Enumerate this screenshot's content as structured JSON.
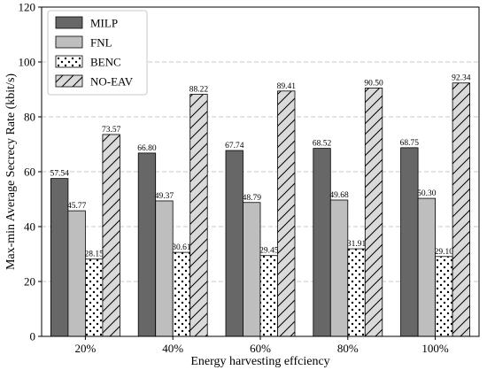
{
  "chart_data": {
    "type": "bar",
    "xlabel": "Energy harvesting effciency",
    "ylabel": "Max-min Average Secrecy Rate (kbit/s)",
    "categories": [
      "20%",
      "40%",
      "60%",
      "80%",
      "100%"
    ],
    "ylim": [
      0,
      120
    ],
    "yticks": [
      0,
      20,
      40,
      60,
      80,
      100,
      120
    ],
    "grid": "horizontal dashed",
    "legend_position": "top-left",
    "series": [
      {
        "name": "MILP",
        "values": [
          57.54,
          66.8,
          67.74,
          68.52,
          68.75
        ],
        "labels": [
          "57.54",
          "66.80",
          "67.74",
          "68.52",
          "68.75"
        ],
        "fill": "#676767",
        "pattern": "solid"
      },
      {
        "name": "FNL",
        "values": [
          45.77,
          49.37,
          48.79,
          49.68,
          50.3
        ],
        "labels": [
          "45.77",
          "49.37",
          "48.79",
          "49.68",
          "50.30"
        ],
        "fill": "#bebebe",
        "pattern": "solid"
      },
      {
        "name": "BENC",
        "values": [
          28.15,
          30.61,
          29.45,
          31.91,
          29.1
        ],
        "labels": [
          "28.15",
          "30.61",
          "29.45",
          "31.91",
          "29.10"
        ],
        "fill": "#ffffff",
        "pattern": "dots"
      },
      {
        "name": "NO-EAV",
        "values": [
          73.57,
          88.22,
          89.41,
          90.5,
          92.34
        ],
        "labels": [
          "73.57",
          "88.22",
          "89.41",
          "90.50",
          "92.34"
        ],
        "fill": "#dadada",
        "pattern": "diagonal-hatch"
      }
    ]
  }
}
